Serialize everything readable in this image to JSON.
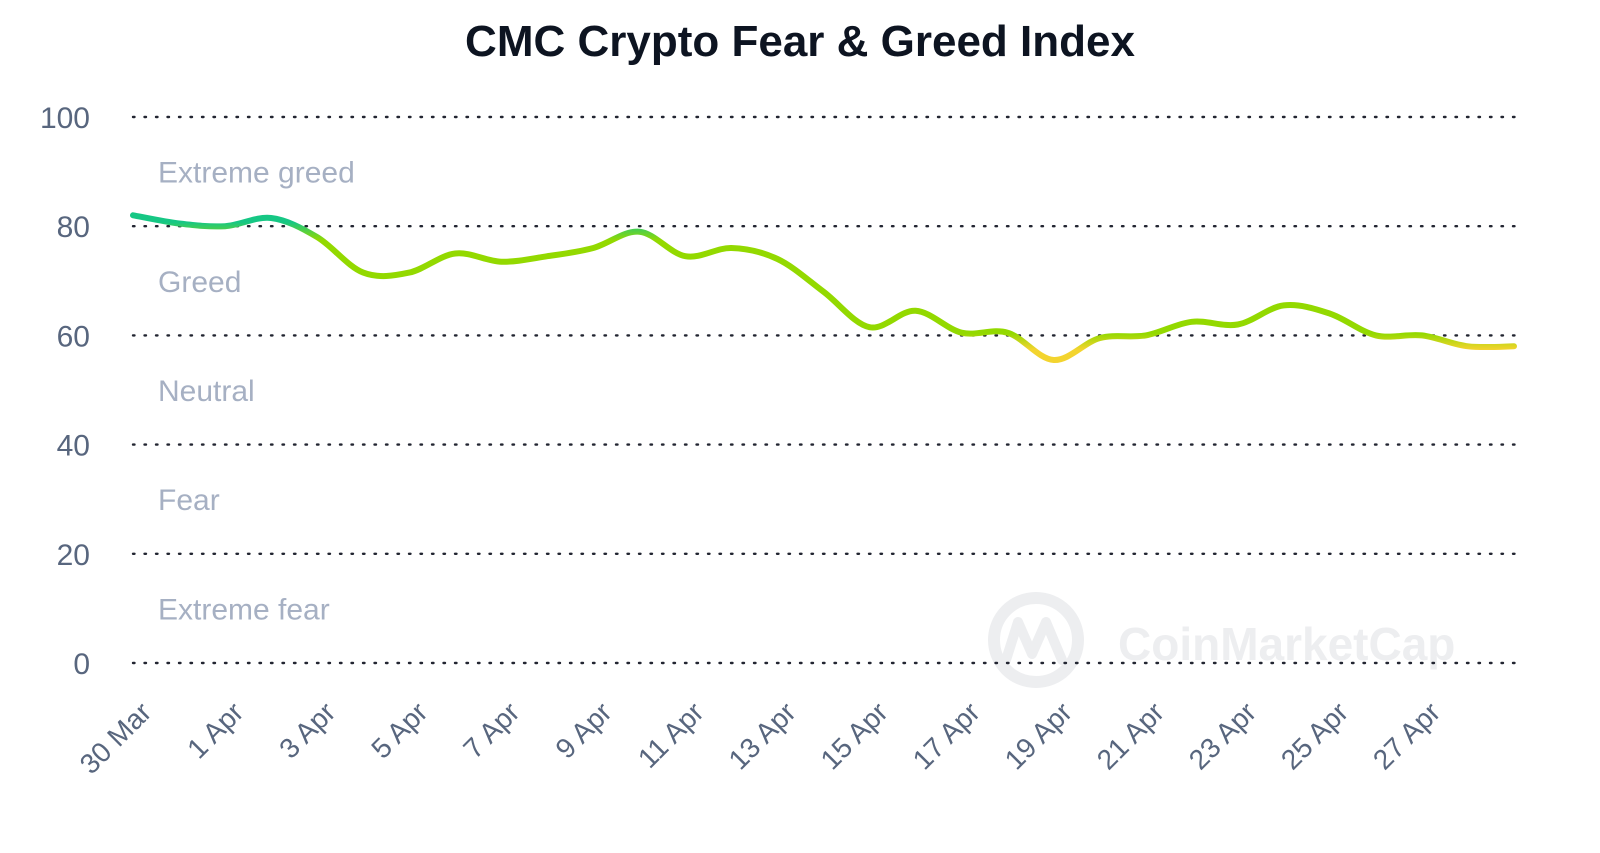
{
  "chart_data": {
    "type": "line",
    "title": "CMC Crypto Fear & Greed Index",
    "xlabel": "",
    "ylabel": "",
    "ylim": [
      0,
      100
    ],
    "yticks": [
      "0",
      "20",
      "40",
      "60",
      "80",
      "100"
    ],
    "xticks": [
      "30 Mar",
      "1 Apr",
      "3 Apr",
      "5 Apr",
      "7 Apr",
      "9 Apr",
      "11 Apr",
      "13 Apr",
      "15 Apr",
      "17 Apr",
      "19 Apr",
      "21 Apr",
      "23 Apr",
      "25 Apr",
      "27 Apr"
    ],
    "zones": [
      {
        "label": "Extreme greed",
        "range": [
          80,
          100
        ]
      },
      {
        "label": "Greed",
        "range": [
          60,
          80
        ]
      },
      {
        "label": "Neutral",
        "range": [
          40,
          60
        ]
      },
      {
        "label": "Fear",
        "range": [
          20,
          40
        ]
      },
      {
        "label": "Extreme fear",
        "range": [
          0,
          20
        ]
      }
    ],
    "grid": true,
    "legend": "none",
    "x_days": [
      0,
      1,
      2,
      3,
      4,
      5,
      6,
      7,
      8,
      9,
      10,
      11,
      12,
      13,
      14,
      15,
      16,
      17,
      18,
      19,
      20,
      21,
      22,
      23,
      24,
      25,
      26,
      27,
      28,
      29,
      30
    ],
    "values": [
      82,
      80.5,
      80,
      81.5,
      78,
      71.5,
      71.5,
      75,
      73.5,
      74.5,
      76,
      79,
      74.5,
      76,
      74,
      68,
      61.5,
      64.5,
      60.5,
      60.5,
      55.5,
      59.5,
      60,
      62.5,
      62,
      65.5,
      64,
      60,
      60,
      58,
      58
    ],
    "colors": {
      "extreme_greed": "#16c784",
      "greed": "#93d900",
      "neutral": "#f3d42f",
      "title": "#0d1421",
      "tick": "#58667e",
      "zone_label": "#a6b0c3",
      "grid": "#222531"
    }
  },
  "watermark": {
    "text": "CoinMarketCap",
    "icon": "coinmarketcap-logo-icon"
  }
}
